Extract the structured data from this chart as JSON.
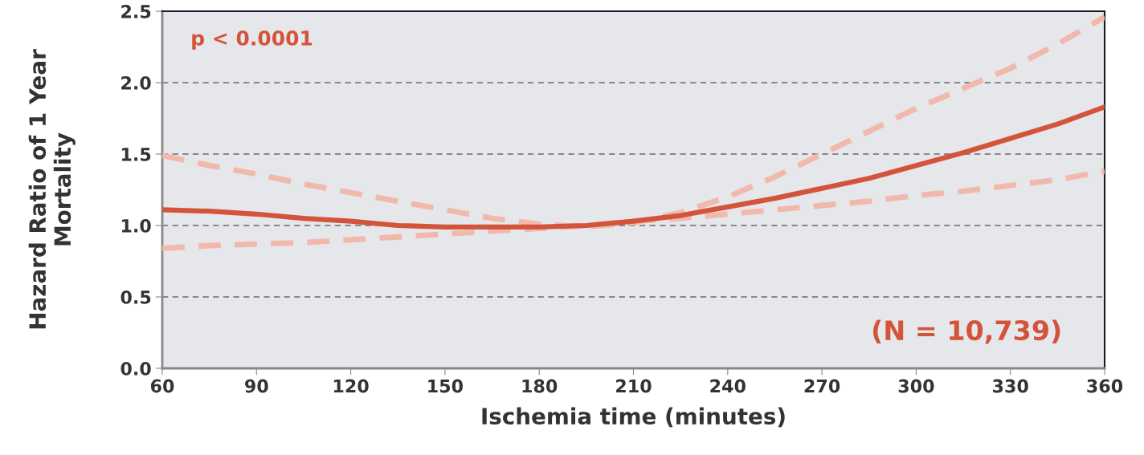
{
  "chart_data": {
    "type": "line",
    "xlabel": "Ischemia time (minutes)",
    "ylabel": "Hazard Ratio of 1 Year\nMortality",
    "x": [
      60,
      75,
      90,
      105,
      120,
      135,
      150,
      165,
      180,
      195,
      210,
      225,
      240,
      255,
      270,
      285,
      300,
      315,
      330,
      345,
      360
    ],
    "series": [
      {
        "color": "#f0b9ac",
        "line_style": "dashed",
        "values": [
          1.49,
          1.42,
          1.36,
          1.29,
          1.23,
          1.17,
          1.11,
          1.05,
          1.01,
          0.99,
          1.02,
          1.09,
          1.2,
          1.34,
          1.5,
          1.66,
          1.82,
          1.96,
          2.1,
          2.27,
          2.46
        ]
      },
      {
        "color": "#f0b9ac",
        "line_style": "dashed",
        "values": [
          0.84,
          0.86,
          0.87,
          0.88,
          0.9,
          0.92,
          0.94,
          0.96,
          0.98,
          1.0,
          1.03,
          1.05,
          1.08,
          1.11,
          1.14,
          1.17,
          1.21,
          1.24,
          1.28,
          1.32,
          1.38
        ]
      },
      {
        "color": "#d4533b",
        "line_style": "solid",
        "values": [
          1.11,
          1.1,
          1.08,
          1.05,
          1.03,
          1.0,
          0.99,
          0.99,
          0.99,
          1.0,
          1.03,
          1.07,
          1.13,
          1.19,
          1.26,
          1.33,
          1.42,
          1.51,
          1.61,
          1.71,
          1.83
        ]
      }
    ],
    "xlim": [
      60,
      360
    ],
    "xticks": [
      60,
      90,
      120,
      150,
      180,
      210,
      240,
      270,
      300,
      330,
      360
    ],
    "ylim": [
      0,
      2.5
    ],
    "yticks": [
      {
        "value": 0,
        "label": "0.0"
      },
      {
        "value": 0.5,
        "label": "0.5"
      },
      {
        "value": 1,
        "label": "1.0"
      },
      {
        "value": 1.5,
        "label": "1.5"
      },
      {
        "value": 2,
        "label": "2.0"
      },
      {
        "value": 2.5,
        "label": "2.5"
      }
    ],
    "grid": "y",
    "marker": "none",
    "annotations": [
      "p < 0.0001",
      "(N = 10,739)"
    ]
  }
}
